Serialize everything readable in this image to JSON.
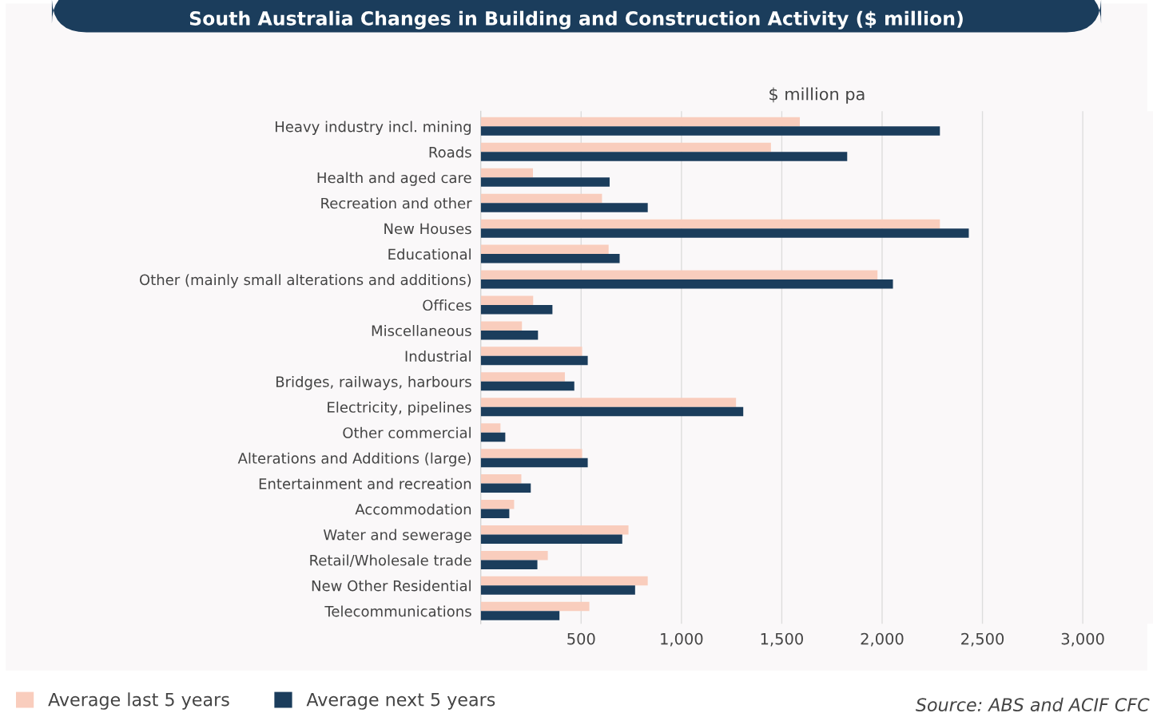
{
  "chart_data": {
    "type": "bar",
    "orientation": "horizontal",
    "title": "South Australia Changes in Building and Construction Activity ($ million)",
    "xlabel": "$ million pa",
    "categories": [
      "Heavy industry incl. mining",
      "Roads",
      "Health and aged care",
      "Recreation and other",
      "New Houses",
      "Educational",
      "Other (mainly small alterations and additions)",
      "Offices",
      "Miscellaneous",
      "Industrial",
      "Bridges, railways, harbours",
      "Electricity, pipelines",
      "Other commercial",
      "Alterations and Additions (large)",
      "Entertainment and recreation",
      "Accommodation",
      "Water and sewerage",
      "Retail/Wholesale trade",
      "New Other Residential",
      "Telecommunications"
    ],
    "series": [
      {
        "name": "Average last 5 years",
        "color": "#f9cdbd",
        "values": [
          1590,
          1446,
          260,
          604,
          2288,
          637,
          1977,
          261,
          205,
          505,
          419,
          1272,
          98,
          505,
          202,
          166,
          736,
          334,
          832,
          541
        ]
      },
      {
        "name": "Average next 5 years",
        "color": "#1b3d5c",
        "values": [
          2288,
          1826,
          642,
          832,
          2432,
          692,
          2054,
          357,
          285,
          533,
          466,
          1308,
          122,
          533,
          249,
          142,
          705,
          282,
          769,
          392
        ]
      }
    ],
    "xlim": [
      0,
      3350
    ],
    "xticks": [
      {
        "value": 500,
        "label": "500"
      },
      {
        "value": 1000,
        "label": "1,000"
      },
      {
        "value": 1500,
        "label": "1,500"
      },
      {
        "value": 2000,
        "label": "2,000"
      },
      {
        "value": 2500,
        "label": "2,500"
      },
      {
        "value": 3000,
        "label": "3,000"
      }
    ],
    "grid": "x",
    "legend": "bottom left",
    "annotations": [
      "Source: ABS and ACIF CFC"
    ]
  }
}
